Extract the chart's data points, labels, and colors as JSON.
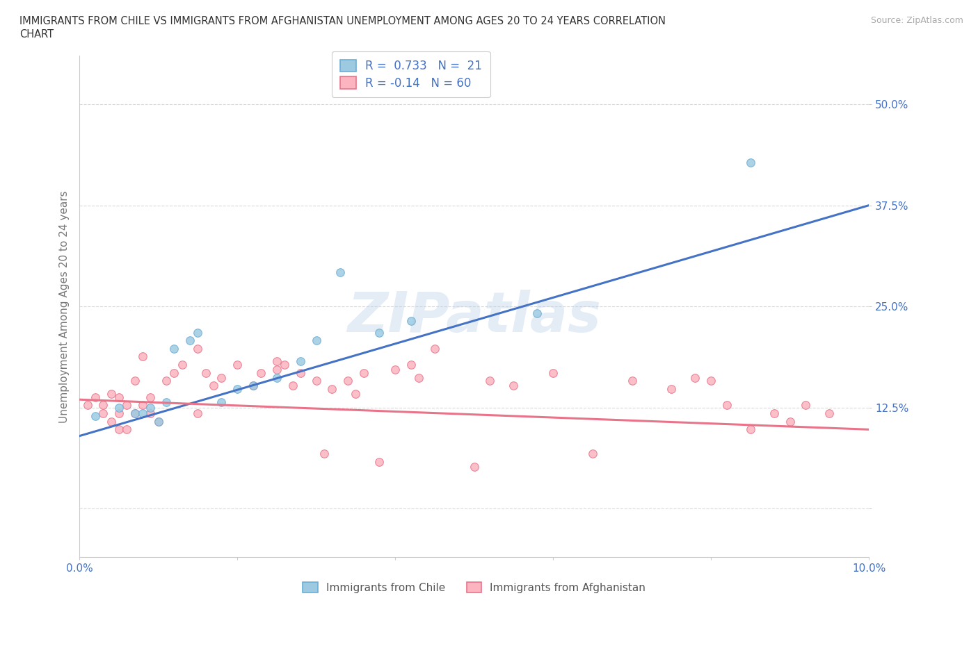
{
  "title_line1": "IMMIGRANTS FROM CHILE VS IMMIGRANTS FROM AFGHANISTAN UNEMPLOYMENT AMONG AGES 20 TO 24 YEARS CORRELATION",
  "title_line2": "CHART",
  "source": "Source: ZipAtlas.com",
  "ylabel": "Unemployment Among Ages 20 to 24 years",
  "xlim": [
    0.0,
    0.1
  ],
  "ylim": [
    -0.06,
    0.56
  ],
  "chile_color": "#4472c4",
  "chile_fill": "#9ecae1",
  "chile_edge": "#6baed6",
  "afghanistan_color": "#e8748a",
  "afghanistan_fill": "#fbb4c0",
  "afghanistan_edge": "#e8748a",
  "chile_R": 0.733,
  "chile_N": 21,
  "afghanistan_R": -0.14,
  "afghanistan_N": 60,
  "chile_line_color": "#4472c4",
  "afghanistan_line_color": "#e8748a",
  "chile_scatter_x": [
    0.002,
    0.005,
    0.007,
    0.008,
    0.009,
    0.01,
    0.011,
    0.012,
    0.014,
    0.015,
    0.018,
    0.02,
    0.022,
    0.025,
    0.028,
    0.03,
    0.033,
    0.038,
    0.042,
    0.058,
    0.085
  ],
  "chile_scatter_y": [
    0.115,
    0.125,
    0.118,
    0.118,
    0.125,
    0.108,
    0.132,
    0.198,
    0.208,
    0.218,
    0.132,
    0.148,
    0.152,
    0.162,
    0.182,
    0.208,
    0.292,
    0.218,
    0.232,
    0.242,
    0.428
  ],
  "afghanistan_scatter_x": [
    0.001,
    0.002,
    0.003,
    0.003,
    0.004,
    0.004,
    0.005,
    0.005,
    0.005,
    0.006,
    0.006,
    0.007,
    0.007,
    0.008,
    0.008,
    0.009,
    0.009,
    0.01,
    0.011,
    0.012,
    0.013,
    0.015,
    0.015,
    0.016,
    0.017,
    0.018,
    0.02,
    0.022,
    0.023,
    0.025,
    0.025,
    0.026,
    0.027,
    0.028,
    0.03,
    0.031,
    0.032,
    0.034,
    0.035,
    0.036,
    0.038,
    0.04,
    0.042,
    0.043,
    0.045,
    0.05,
    0.052,
    0.055,
    0.06,
    0.065,
    0.07,
    0.075,
    0.078,
    0.08,
    0.082,
    0.085,
    0.088,
    0.09,
    0.092,
    0.095
  ],
  "afghanistan_scatter_y": [
    0.128,
    0.138,
    0.118,
    0.128,
    0.108,
    0.142,
    0.098,
    0.118,
    0.138,
    0.098,
    0.128,
    0.118,
    0.158,
    0.128,
    0.188,
    0.118,
    0.138,
    0.108,
    0.158,
    0.168,
    0.178,
    0.198,
    0.118,
    0.168,
    0.152,
    0.162,
    0.178,
    0.152,
    0.168,
    0.172,
    0.182,
    0.178,
    0.152,
    0.168,
    0.158,
    0.068,
    0.148,
    0.158,
    0.142,
    0.168,
    0.058,
    0.172,
    0.178,
    0.162,
    0.198,
    0.052,
    0.158,
    0.152,
    0.168,
    0.068,
    0.158,
    0.148,
    0.162,
    0.158,
    0.128,
    0.098,
    0.118,
    0.108,
    0.128,
    0.118
  ],
  "chile_trend_x0": 0.0,
  "chile_trend_y0": 0.09,
  "chile_trend_x1": 0.1,
  "chile_trend_y1": 0.375,
  "afg_trend_x0": 0.0,
  "afg_trend_y0": 0.135,
  "afg_trend_x1": 0.1,
  "afg_trend_y1": 0.098
}
